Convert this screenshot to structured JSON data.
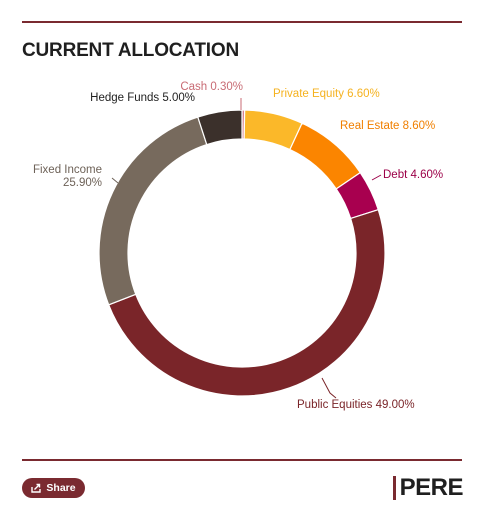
{
  "header": {
    "title": "CURRENT ALLOCATION"
  },
  "footer": {
    "share_label": "Share",
    "brand": "PERE"
  },
  "chart_data": {
    "type": "pie",
    "donut": true,
    "title": "CURRENT ALLOCATION",
    "legend": "none",
    "slices": [
      {
        "label": "Cash 0.30%",
        "value": 0.3,
        "color": "#d7848f"
      },
      {
        "label": "Private Equity 6.60%",
        "value": 6.6,
        "color": "#fbb829"
      },
      {
        "label": "Real Estate 8.60%",
        "value": 8.6,
        "color": "#fb8500"
      },
      {
        "label": "Debt 4.60%",
        "value": 4.6,
        "color": "#a8004f"
      },
      {
        "label": "Public Equities 49.00%",
        "value": 49.0,
        "color": "#7a2529"
      },
      {
        "label_lines": [
          "Fixed Income",
          "25.90%"
        ],
        "value": 25.9,
        "color": "#776a5d"
      },
      {
        "label": "Hedge Funds 5.00%",
        "value": 5.0,
        "color": "#3b302b"
      }
    ],
    "label_colors": [
      "#c86b74",
      "#f5b21f",
      "#f07f00",
      "#9c0048",
      "#7a2529",
      "#6e6258",
      "#1f1f1f"
    ]
  }
}
